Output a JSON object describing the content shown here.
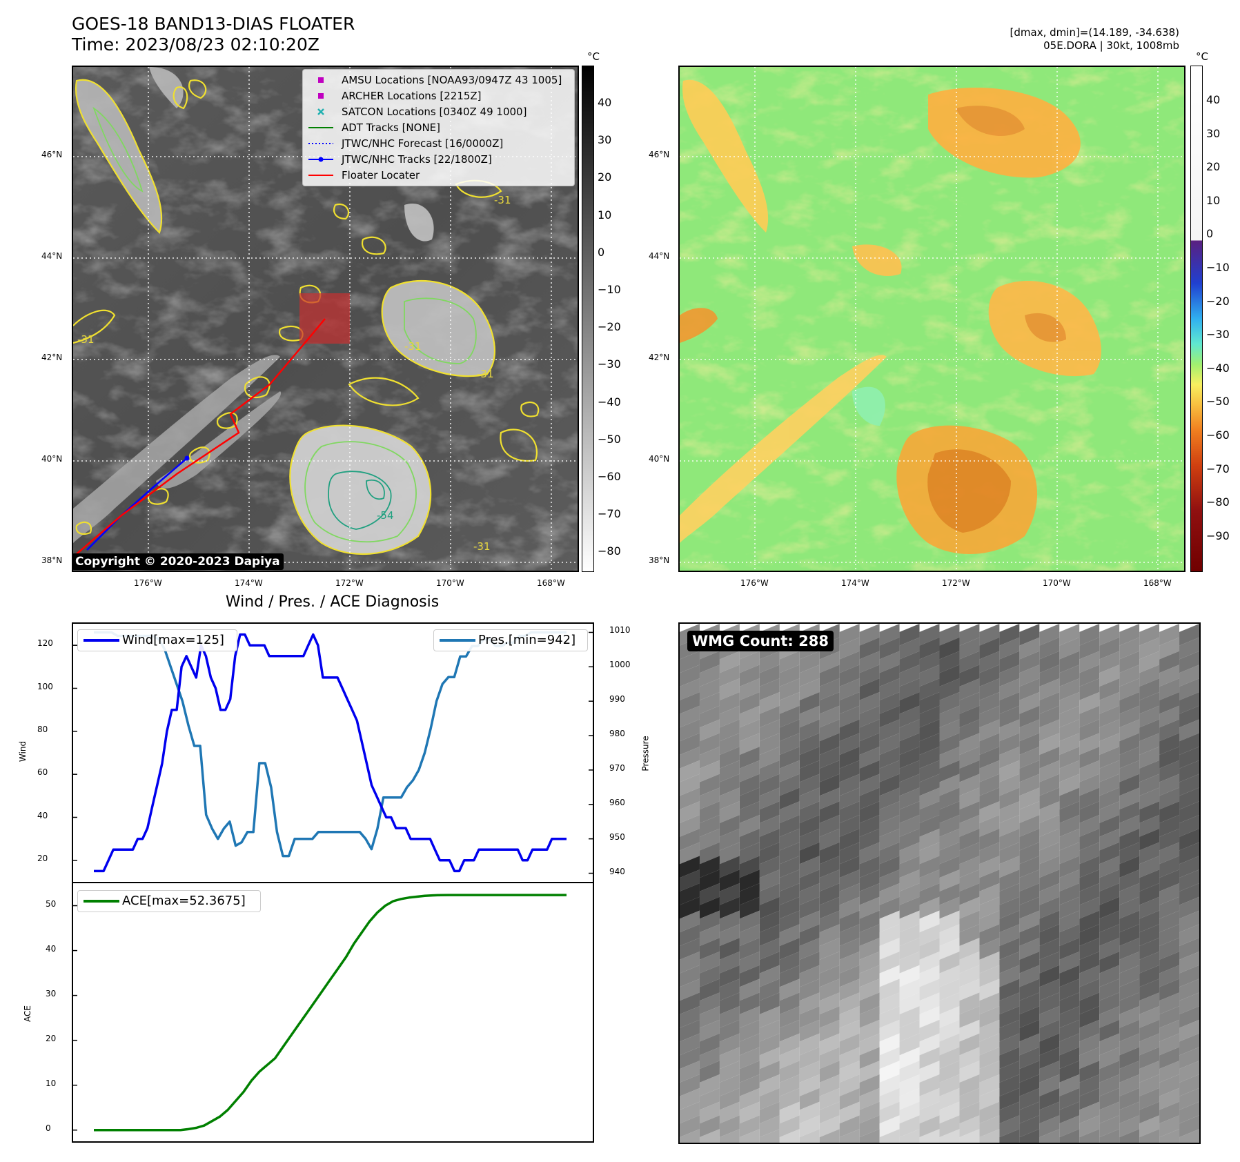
{
  "header": {
    "title_line1": "GOES-18 BAND13-DIAS FLOATER",
    "title_line2": "Time: 2023/08/23 02:10:20Z",
    "right_line1": "[dmax, dmin]=(14.189, -34.638)",
    "right_line2": "05E.DORA | 30kt, 1008mb"
  },
  "maps": {
    "lat_labels": [
      "46°N",
      "44°N",
      "42°N",
      "40°N",
      "38°N"
    ],
    "lon_labels": [
      "176°W",
      "174°W",
      "172°W",
      "170°W",
      "168°W"
    ],
    "left_colorbar": {
      "unit": "°C",
      "ticks": [
        "40",
        "30",
        "20",
        "10",
        "0",
        "−10",
        "−20",
        "−30",
        "−40",
        "−50",
        "−60",
        "−70",
        "−80"
      ]
    },
    "right_colorbar": {
      "unit": "°C",
      "ticks": [
        "40",
        "30",
        "20",
        "10",
        "0",
        "−10",
        "−20",
        "−30",
        "−40",
        "−50",
        "−60",
        "−70",
        "−80",
        "−90"
      ]
    },
    "legend": [
      {
        "label": "AMSU Locations [NOAA93/0947Z 43 1005]",
        "symbol": "square",
        "color": "#c000c0"
      },
      {
        "label": "ARCHER Locations [2215Z]",
        "symbol": "square",
        "color": "#c000c0"
      },
      {
        "label": "SATCON Locations [0340Z 49 1000]",
        "symbol": "x",
        "color": "#20b0b0"
      },
      {
        "label": "ADT Tracks [NONE]",
        "symbol": "line",
        "color": "#008000"
      },
      {
        "label": "JTWC/NHC Forecast [16/0000Z]",
        "symbol": "dotted",
        "color": "#0000ff"
      },
      {
        "label": "JTWC/NHC Tracks [22/1800Z]",
        "symbol": "line-dot",
        "color": "#0000ff"
      },
      {
        "label": "Floater Locater",
        "symbol": "line",
        "color": "#ff0000"
      }
    ],
    "contour_labels": [
      "-31",
      "-31",
      "-31",
      "-31",
      "-54",
      "-31"
    ],
    "copyright": "Copyright © 2020-2023 Dapiya"
  },
  "diagnosis": {
    "title": "Wind / Pres. / ACE Diagnosis",
    "wind_ylabel": "Wind",
    "pressure_ylabel": "Pressure",
    "ace_ylabel": "ACE",
    "wind_legend": "Wind[max=125]",
    "pres_legend": "Pres.[min=942]",
    "ace_legend": "ACE[max=52.3675]",
    "wind_ticks": [
      "120",
      "100",
      "80",
      "60",
      "40",
      "20"
    ],
    "pres_ticks": [
      "1010",
      "1000",
      "990",
      "980",
      "970",
      "960",
      "950",
      "940"
    ],
    "ace_ticks": [
      "50",
      "40",
      "30",
      "20",
      "10",
      "0"
    ]
  },
  "wmg": {
    "label": "WMG Count: 288"
  },
  "chart_data": [
    {
      "type": "line",
      "title": "Wind / Pres. / ACE Diagnosis",
      "series": [
        {
          "name": "Wind[max=125]",
          "color": "#0000ee",
          "axis": "left",
          "ylim": [
            10,
            130
          ],
          "values": [
            15,
            15,
            15,
            20,
            25,
            25,
            25,
            25,
            25,
            30,
            30,
            35,
            45,
            55,
            65,
            80,
            90,
            90,
            110,
            115,
            110,
            105,
            120,
            115,
            105,
            100,
            90,
            90,
            95,
            115,
            125,
            125,
            120,
            120,
            120,
            120,
            115,
            115,
            115,
            115,
            115,
            115,
            115,
            115,
            120,
            125,
            120,
            105,
            105,
            105,
            105,
            100,
            95,
            90,
            85,
            75,
            65,
            55,
            50,
            45,
            40,
            40,
            35,
            35,
            35,
            30,
            30,
            30,
            30,
            30,
            25,
            20,
            20,
            20,
            15,
            15,
            20,
            20,
            20,
            25,
            25,
            25,
            25,
            25,
            25,
            25,
            25,
            25,
            20,
            20,
            25,
            25,
            25,
            25,
            30,
            30,
            30,
            30
          ]
        },
        {
          "name": "Pres.[min=942]",
          "color": "#1f77b4",
          "axis": "right",
          "ylim": [
            937.5,
            1012.5
          ],
          "values": [
            1010,
            1010,
            1010,
            1010,
            1009,
            1009,
            1009,
            1009,
            1009,
            1009,
            1009,
            1008,
            1005,
            1000,
            995,
            990,
            983,
            977,
            977,
            957,
            953,
            950,
            953,
            955,
            948,
            949,
            952,
            952,
            972,
            972,
            965,
            952,
            945,
            945,
            950,
            950,
            950,
            950,
            952,
            952,
            952,
            952,
            952,
            952,
            952,
            952,
            950,
            947,
            953,
            962,
            962,
            962,
            962,
            965,
            967,
            970,
            975,
            982,
            990,
            995,
            997,
            997,
            1003,
            1003,
            1006,
            1006,
            1008,
            1008,
            1006,
            1006,
            1007,
            1007,
            1009,
            1009,
            1010,
            1010,
            1010,
            1010,
            1010,
            1010,
            1010
          ]
        },
        {
          "name": "ACE[max=52.3675]",
          "color": "#008000",
          "axis": "ace",
          "ylim": [
            -2.5,
            55
          ],
          "values": [
            0,
            0,
            0,
            0,
            0,
            0,
            0,
            0,
            0,
            0,
            0,
            0,
            0.2,
            0.5,
            1.0,
            2.0,
            3.0,
            4.5,
            6.5,
            8.5,
            11,
            13,
            14.5,
            16,
            18.5,
            21,
            23.5,
            26,
            28.5,
            31,
            33.5,
            36,
            38.5,
            41.5,
            44,
            46.5,
            48.5,
            50,
            51,
            51.5,
            51.8,
            52,
            52.2,
            52.3,
            52.35,
            52.37,
            52.37,
            52.37,
            52.37,
            52.37,
            52.37,
            52.37,
            52.37,
            52.37,
            52.37,
            52.37,
            52.37,
            52.37,
            52.37,
            52.37,
            52.37
          ]
        }
      ]
    }
  ]
}
